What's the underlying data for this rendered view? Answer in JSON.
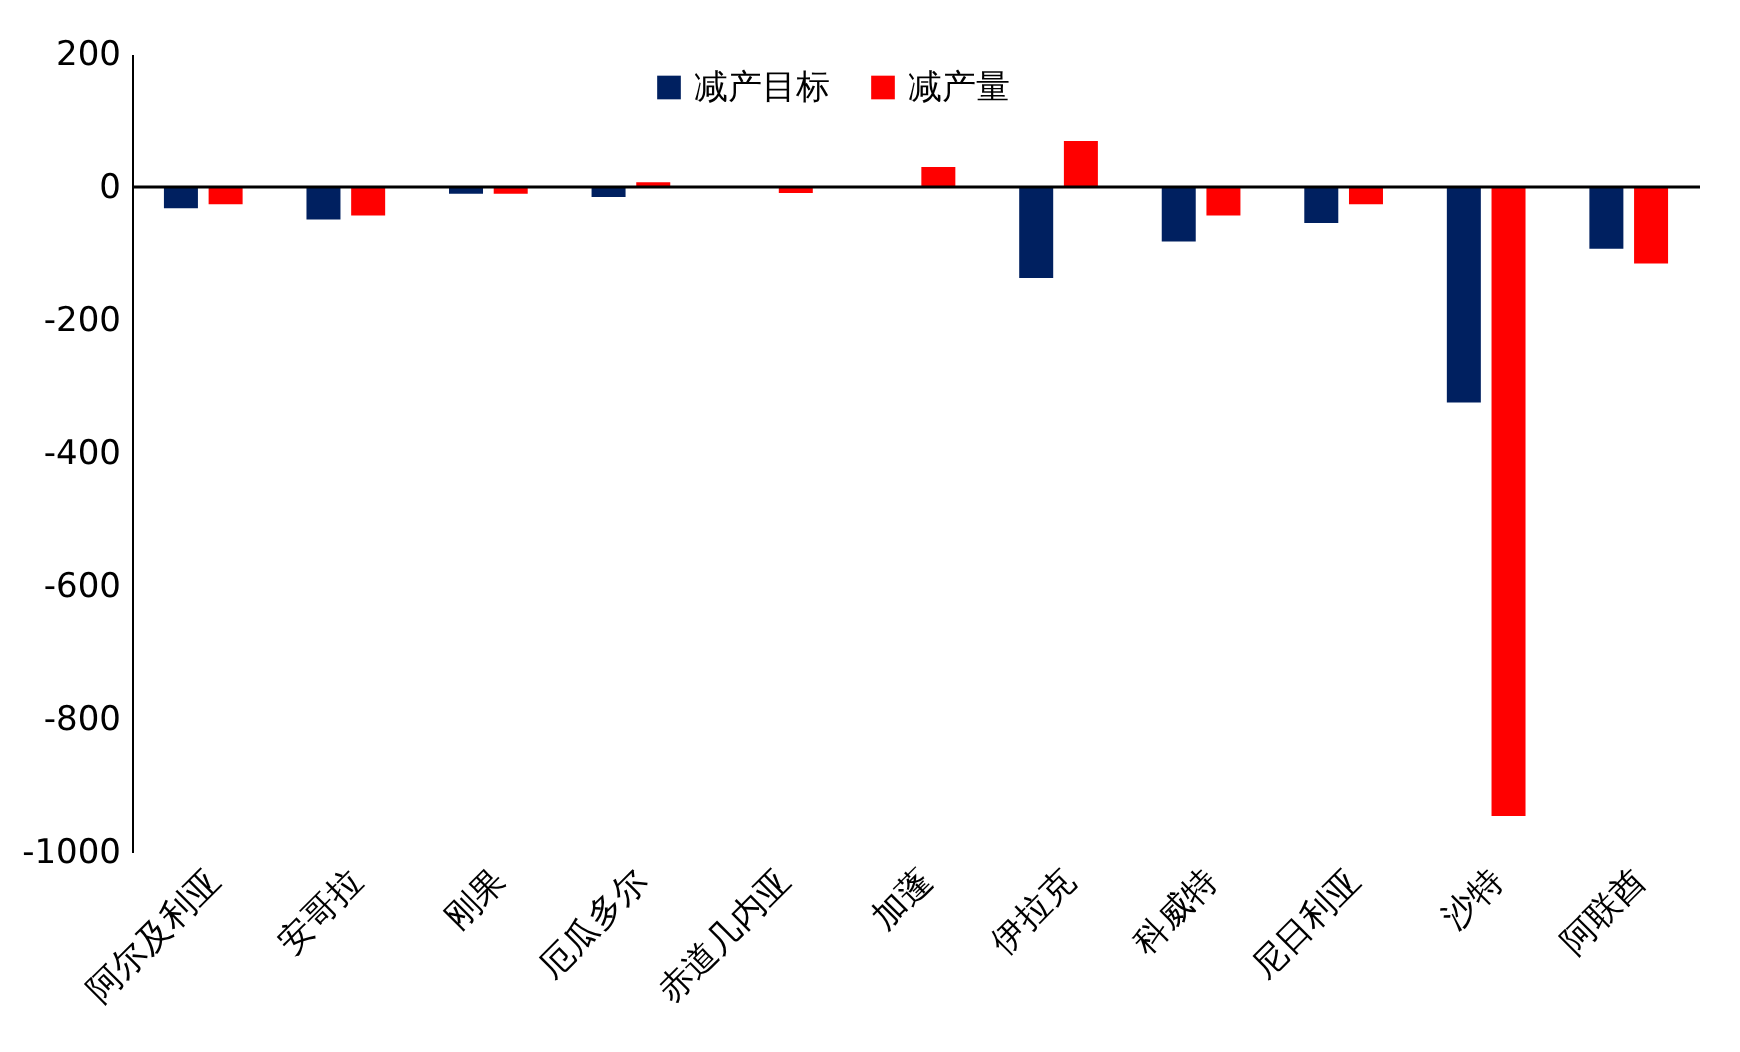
{
  "chart_data": {
    "type": "bar",
    "categories": [
      "阿尔及利亚",
      "安哥拉",
      "刚果",
      "厄瓜多尔",
      "赤道几内亚",
      "加蓬",
      "伊拉克",
      "科威特",
      "尼日利亚",
      "沙特",
      "阿联酋"
    ],
    "series": [
      {
        "name": "减产目标",
        "color": "#002060",
        "values": [
          -32,
          -49,
          -10,
          -15,
          null,
          null,
          -137,
          -82,
          -54,
          -324,
          -93
        ]
      },
      {
        "name": "减产量",
        "color": "#ff0000",
        "values": [
          -26,
          -43,
          -10,
          7,
          -9,
          30,
          69,
          -43,
          -26,
          -946,
          -115
        ]
      }
    ],
    "ylim": [
      -1000,
      200
    ],
    "yticks": [
      -1000,
      -800,
      -600,
      -400,
      -200,
      0,
      200
    ],
    "grid": false,
    "legend": "top",
    "ref_lines": [
      {
        "axis": "y",
        "value": 0,
        "color": "#000000"
      }
    ]
  }
}
